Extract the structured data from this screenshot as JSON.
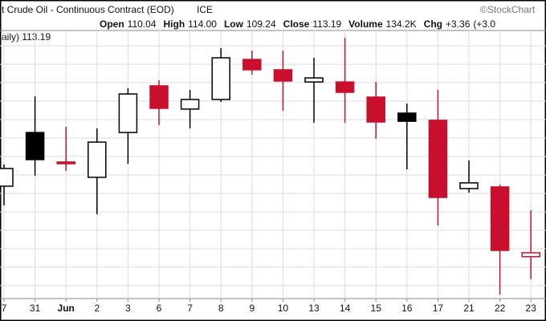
{
  "chart_data": {
    "type": "candlestick",
    "title": "t Crude Oil - Continuous Contract (EOD)",
    "exchange": "ICE",
    "source": "©StockChart",
    "legend": "aily) 113.19",
    "quote": [
      {
        "label": "Open",
        "value": "110.04"
      },
      {
        "label": "High",
        "value": "114.00"
      },
      {
        "label": "Low",
        "value": "109.24"
      },
      {
        "label": "Close",
        "value": "113.19"
      },
      {
        "label": "Volume",
        "value": "134.2K"
      },
      {
        "label": "Chg",
        "value": "+3.36"
      }
    ],
    "quote_tail": "(+3.0",
    "categories": [
      "7",
      "31",
      "Jun",
      "2",
      "3",
      "6",
      "7",
      "8",
      "9",
      "10",
      "13",
      "14",
      "15",
      "16",
      "17",
      "21",
      "22",
      "23"
    ],
    "open": [
      113.39,
      116.3,
      114.7,
      113.87,
      116.3,
      118.83,
      117.57,
      118.09,
      120.26,
      119.7,
      119.04,
      119.04,
      118.22,
      117.35,
      116.96,
      113.26,
      113.35,
      109.57
    ],
    "high": [
      114.57,
      118.26,
      116.61,
      116.52,
      118.7,
      119.13,
      118.61,
      120.87,
      120.74,
      120.74,
      120.35,
      121.43,
      119.04,
      117.87,
      118.61,
      114.78,
      113.48,
      112.09
    ],
    "low": [
      112.35,
      113.96,
      114.22,
      111.87,
      114.61,
      116.7,
      116.52,
      117.96,
      119.43,
      117.48,
      116.83,
      116.83,
      115.96,
      114.3,
      111.26,
      113.04,
      107.52,
      108.35
    ],
    "close": [
      114.35,
      114.83,
      114.61,
      115.78,
      118.39,
      117.61,
      118.09,
      120.35,
      119.7,
      119.09,
      119.26,
      118.48,
      116.87,
      116.91,
      112.78,
      113.57,
      109.91,
      109.78
    ],
    "colors": [
      "#000000",
      "#000000",
      "#c8102e",
      "#000000",
      "#000000",
      "#c8102e",
      "#000000",
      "#000000",
      "#c8102e",
      "#c8102e",
      "#000000",
      "#c8102e",
      "#c8102e",
      "#000000",
      "#c8102e",
      "#000000",
      "#c8102e",
      "#c8102e"
    ],
    "ylim": [
      107.3,
      121.83
    ],
    "yticks": [
      108,
      109,
      110,
      111,
      112,
      113,
      114,
      115,
      116,
      117,
      118,
      119,
      120,
      121
    ],
    "grid": true
  }
}
